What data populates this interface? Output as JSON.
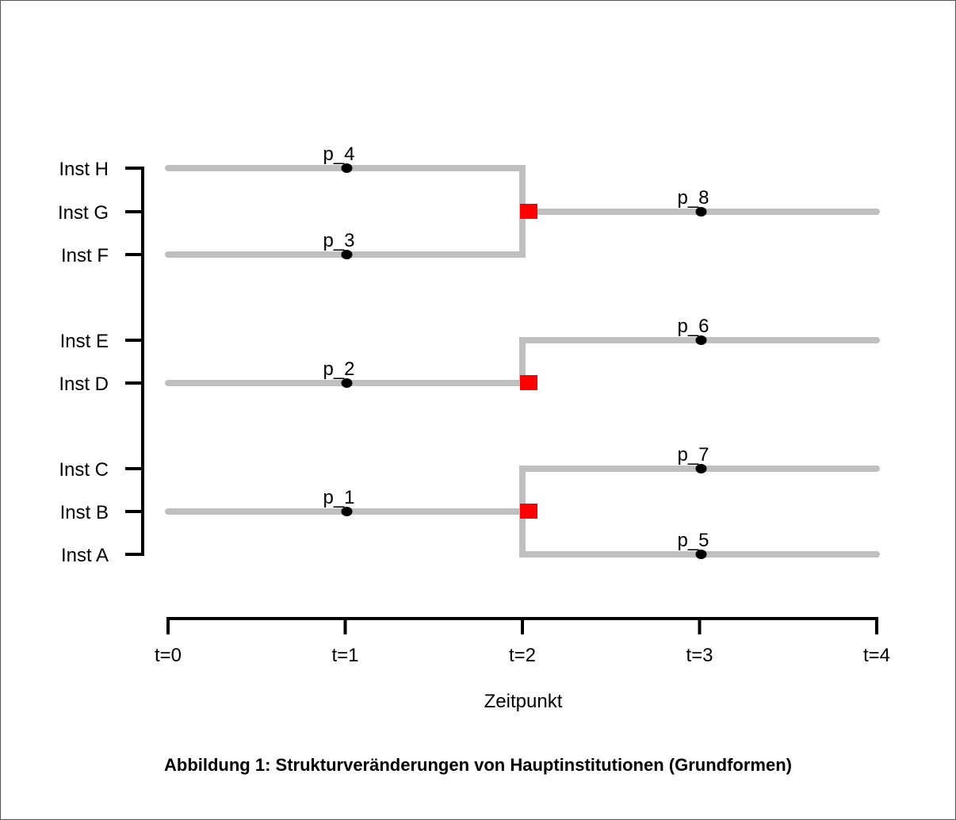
{
  "figure": {
    "caption": "Abbildung 1: Strukturveränderungen von Hauptinstitutionen (Grundformen)",
    "xlabel": "Zeitpunkt",
    "x_ticks": [
      "t=0",
      "t=1",
      "t=2",
      "t=3",
      "t=4"
    ],
    "y_ticks": [
      "Inst A",
      "Inst B",
      "Inst C",
      "Inst D",
      "Inst E",
      "Inst F",
      "Inst G",
      "Inst H"
    ]
  },
  "colors": {
    "line": "#bfbfbf",
    "event": "#ff0000",
    "point": "#000000",
    "axis": "#000000"
  },
  "chart_data": {
    "type": "diagram",
    "x_domain": [
      0,
      4
    ],
    "y_categories": [
      "Inst A",
      "Inst B",
      "Inst C",
      "Inst D",
      "Inst E",
      "Inst F",
      "Inst G",
      "Inst H"
    ],
    "paths": [
      {
        "name": "p_4",
        "points": [
          [
            0,
            "Inst H"
          ],
          [
            2,
            "Inst H"
          ],
          [
            2,
            "Inst G"
          ]
        ],
        "label_at": [
          1,
          "Inst H"
        ]
      },
      {
        "name": "p_3",
        "points": [
          [
            0,
            "Inst F"
          ],
          [
            2,
            "Inst F"
          ],
          [
            2,
            "Inst G"
          ]
        ],
        "label_at": [
          1,
          "Inst F"
        ]
      },
      {
        "name": "p_8",
        "points": [
          [
            2,
            "Inst G"
          ],
          [
            4,
            "Inst G"
          ]
        ],
        "label_at": [
          3,
          "Inst G"
        ]
      },
      {
        "name": "p_2",
        "points": [
          [
            0,
            "Inst D"
          ],
          [
            2,
            "Inst D"
          ]
        ],
        "label_at": [
          1,
          "Inst D"
        ]
      },
      {
        "name": "p_6",
        "points": [
          [
            2,
            "Inst D"
          ],
          [
            2,
            "Inst E"
          ],
          [
            4,
            "Inst E"
          ]
        ],
        "label_at": [
          3,
          "Inst E"
        ]
      },
      {
        "name": "p_1",
        "points": [
          [
            0,
            "Inst B"
          ],
          [
            2,
            "Inst B"
          ]
        ],
        "label_at": [
          1,
          "Inst B"
        ]
      },
      {
        "name": "p_7",
        "points": [
          [
            2,
            "Inst B"
          ],
          [
            2,
            "Inst C"
          ],
          [
            4,
            "Inst C"
          ]
        ],
        "label_at": [
          3,
          "Inst C"
        ]
      },
      {
        "name": "p_5",
        "points": [
          [
            2,
            "Inst B"
          ],
          [
            2,
            "Inst A"
          ],
          [
            4,
            "Inst A"
          ]
        ],
        "label_at": [
          3,
          "Inst A"
        ]
      }
    ],
    "events": [
      [
        2,
        "Inst G"
      ],
      [
        2,
        "Inst D"
      ],
      [
        2,
        "Inst B"
      ]
    ]
  }
}
